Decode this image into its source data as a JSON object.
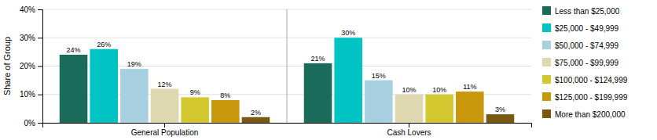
{
  "chart_data": {
    "type": "bar",
    "ylabel": "Share of Group",
    "categories": [
      "General Population",
      "Cash Lovers"
    ],
    "series": [
      {
        "name": "Less than $25,000",
        "color": "#1a6b5a",
        "values": [
          24,
          21
        ],
        "value_labels": [
          "24%",
          "21%"
        ]
      },
      {
        "name": "$25,000 - $49,999",
        "color": "#00c4c4",
        "values": [
          26,
          30
        ],
        "value_labels": [
          "26%",
          "30%"
        ]
      },
      {
        "name": "$50,000 - $74,999",
        "color": "#a8d0e0",
        "values": [
          19,
          15
        ],
        "value_labels": [
          "19%",
          "15%"
        ]
      },
      {
        "name": "$75,000 - $99,999",
        "color": "#ddd8b0",
        "values": [
          12,
          10
        ],
        "value_labels": [
          "12%",
          "10%"
        ]
      },
      {
        "name": "$100,000 - $124,999",
        "color": "#d4c830",
        "values": [
          9,
          10
        ],
        "value_labels": [
          "9%",
          "10%"
        ]
      },
      {
        "name": "$125,000 - $199,999",
        "color": "#c8980c",
        "values": [
          8,
          11
        ],
        "value_labels": [
          "8%",
          "11%"
        ]
      },
      {
        "name": "More than $200,000",
        "color": "#7a5810",
        "values": [
          2,
          3
        ],
        "value_labels": [
          "2%",
          "3%"
        ]
      }
    ],
    "ylim": [
      0,
      40
    ],
    "yticks": [
      {
        "value": 0,
        "label": "0%"
      },
      {
        "value": 10,
        "label": "10%"
      },
      {
        "value": 20,
        "label": "20%"
      },
      {
        "value": 30,
        "label": "30%"
      },
      {
        "value": 40,
        "label": "40%"
      }
    ],
    "grid": true,
    "legend": "right",
    "data_labels": true
  }
}
